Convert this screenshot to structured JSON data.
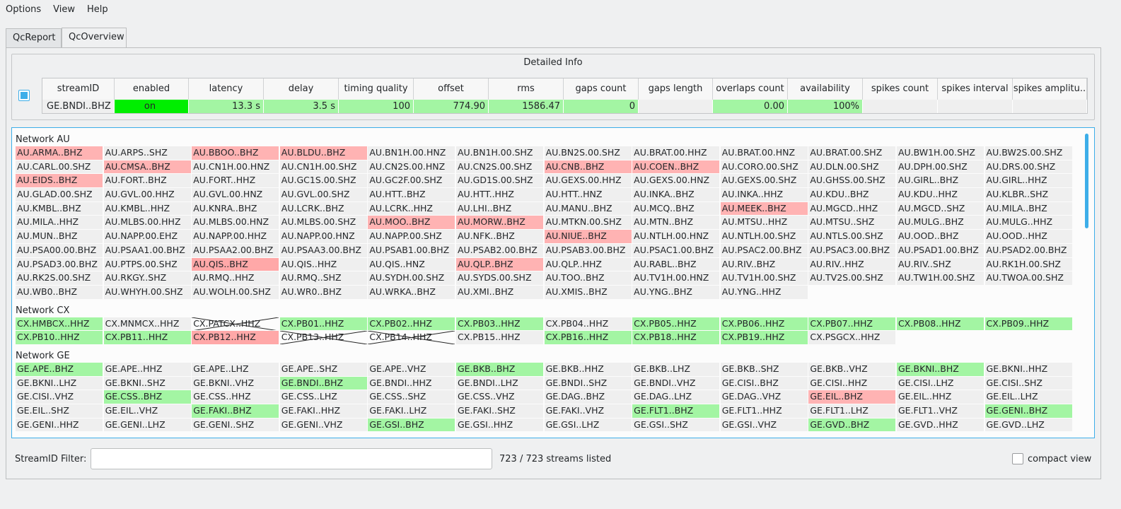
{
  "menu": [
    "Options",
    "View",
    "Help"
  ],
  "tabs": [
    "QcReport",
    "QcOverview"
  ],
  "detail": {
    "title": "Detailed Info",
    "columns": [
      "streamID",
      "enabled",
      "latency",
      "delay",
      "timing quality",
      "offset",
      "rms",
      "gaps count",
      "gaps length",
      "overlaps count",
      "availability",
      "spikes count",
      "spikes interval",
      "spikes amplitu.."
    ],
    "row": [
      {
        "text": "GE.BNDI..BHZ",
        "color": "#efefef"
      },
      {
        "text": "on",
        "color": "#00ee00"
      },
      {
        "text": "13.3 s",
        "color": "#a3f5a3"
      },
      {
        "text": "3.5 s",
        "color": "#a3f5a3"
      },
      {
        "text": "100",
        "color": "#a3f5a3"
      },
      {
        "text": "774.90",
        "color": "#a3f5a3"
      },
      {
        "text": "1586.47",
        "color": "#a3f5a3"
      },
      {
        "text": "0",
        "color": "#a3f5a3"
      },
      {
        "color": "#efefef"
      },
      {
        "text": "0.00",
        "color": "#a3f5a3"
      },
      {
        "text": "100%",
        "color": "#a3f5a3"
      },
      {
        "color": "#efefef"
      },
      {
        "color": "#efefef"
      },
      {
        "color": "#efefef"
      }
    ]
  },
  "networks": [
    {
      "label": "Network AU",
      "streams": [
        {
          "id": "AU.ARMA..BHZ",
          "color": "#ffb3b3"
        },
        {
          "id": "AU.ARPS..SHZ"
        },
        {
          "id": "AU.BBOO..BHZ",
          "color": "#ffb3b3"
        },
        {
          "id": "AU.BLDU..BHZ",
          "color": "#ffb3b3"
        },
        {
          "id": "AU.BN1H.00.HNZ"
        },
        {
          "id": "AU.BN1H.00.SHZ"
        },
        {
          "id": "AU.BN2S.00.SHZ"
        },
        {
          "id": "AU.BRAT.00.HHZ"
        },
        {
          "id": "AU.BRAT.00.HNZ"
        },
        {
          "id": "AU.BRAT.00.SHZ"
        },
        {
          "id": "AU.BW1H.00.SHZ"
        },
        {
          "id": "AU.BW2S.00.SHZ"
        },
        {
          "id": "AU.CARL.00.SHZ"
        },
        {
          "id": "AU.CMSA..BHZ",
          "color": "#ffb3b3"
        },
        {
          "id": "AU.CN1H.00.HNZ"
        },
        {
          "id": "AU.CN1H.00.SHZ"
        },
        {
          "id": "AU.CN2S.00.HNZ"
        },
        {
          "id": "AU.CN2S.00.SHZ"
        },
        {
          "id": "AU.CNB..BHZ",
          "color": "#ffb3b3"
        },
        {
          "id": "AU.COEN..BHZ",
          "color": "#ffb3b3"
        },
        {
          "id": "AU.CORO.00.SHZ"
        },
        {
          "id": "AU.DLN.00.SHZ"
        },
        {
          "id": "AU.DPH.00.SHZ"
        },
        {
          "id": "AU.DRS.00.SHZ"
        },
        {
          "id": "AU.EIDS..BHZ",
          "color": "#ffb3b3"
        },
        {
          "id": "AU.FORT..BHZ"
        },
        {
          "id": "AU.FORT..HHZ"
        },
        {
          "id": "AU.GC1S.00.SHZ"
        },
        {
          "id": "AU.GC2F.00.SHZ"
        },
        {
          "id": "AU.GD1S.00.SHZ"
        },
        {
          "id": "AU.GEXS.00.HHZ"
        },
        {
          "id": "AU.GEXS.00.HNZ"
        },
        {
          "id": "AU.GEXS.00.SHZ"
        },
        {
          "id": "AU.GHSS.00.SHZ"
        },
        {
          "id": "AU.GIRL..BHZ"
        },
        {
          "id": "AU.GIRL..HHZ"
        },
        {
          "id": "AU.GLAD.00.SHZ"
        },
        {
          "id": "AU.GVL.00.HHZ"
        },
        {
          "id": "AU.GVL.00.HNZ"
        },
        {
          "id": "AU.GVL.00.SHZ"
        },
        {
          "id": "AU.HTT..BHZ"
        },
        {
          "id": "AU.HTT..HHZ"
        },
        {
          "id": "AU.HTT..HNZ"
        },
        {
          "id": "AU.INKA..BHZ"
        },
        {
          "id": "AU.INKA..HHZ"
        },
        {
          "id": "AU.KDU..BHZ"
        },
        {
          "id": "AU.KDU..HHZ"
        },
        {
          "id": "AU.KLBR..SHZ"
        },
        {
          "id": "AU.KMBL..BHZ"
        },
        {
          "id": "AU.KMBL..HHZ"
        },
        {
          "id": "AU.KNRA..BHZ"
        },
        {
          "id": "AU.LCRK..BHZ"
        },
        {
          "id": "AU.LCRK..HHZ"
        },
        {
          "id": "AU.LHI..BHZ"
        },
        {
          "id": "AU.MANU..BHZ"
        },
        {
          "id": "AU.MCQ..BHZ"
        },
        {
          "id": "AU.MEEK..BHZ",
          "color": "#ffb3b3"
        },
        {
          "id": "AU.MGCD..HHZ"
        },
        {
          "id": "AU.MGCD..SHZ"
        },
        {
          "id": "AU.MILA..BHZ"
        },
        {
          "id": "AU.MILA..HHZ"
        },
        {
          "id": "AU.MLBS.00.HHZ"
        },
        {
          "id": "AU.MLBS.00.HNZ"
        },
        {
          "id": "AU.MLBS.00.SHZ"
        },
        {
          "id": "AU.MOO..BHZ",
          "color": "#ffb3b3"
        },
        {
          "id": "AU.MORW..BHZ",
          "color": "#ffb3b3"
        },
        {
          "id": "AU.MTKN.00.SHZ"
        },
        {
          "id": "AU.MTN..BHZ"
        },
        {
          "id": "AU.MTSU..HHZ"
        },
        {
          "id": "AU.MTSU..SHZ"
        },
        {
          "id": "AU.MULG..BHZ"
        },
        {
          "id": "AU.MULG..HHZ"
        },
        {
          "id": "AU.MUN..BHZ"
        },
        {
          "id": "AU.NAPP.00.EHZ"
        },
        {
          "id": "AU.NAPP.00.HHZ"
        },
        {
          "id": "AU.NAPP.00.HNZ"
        },
        {
          "id": "AU.NAPP.00.SHZ"
        },
        {
          "id": "AU.NFK..BHZ"
        },
        {
          "id": "AU.NIUE..BHZ",
          "color": "#ffb3b3"
        },
        {
          "id": "AU.NTLH.00.HNZ"
        },
        {
          "id": "AU.NTLH.00.SHZ"
        },
        {
          "id": "AU.NTLS.00.SHZ"
        },
        {
          "id": "AU.OOD..BHZ"
        },
        {
          "id": "AU.OOD..HHZ"
        },
        {
          "id": "AU.PSA00.00.BHZ"
        },
        {
          "id": "AU.PSAA1.00.BHZ"
        },
        {
          "id": "AU.PSAA2.00.BHZ"
        },
        {
          "id": "AU.PSAA3.00.BHZ"
        },
        {
          "id": "AU.PSAB1.00.BHZ"
        },
        {
          "id": "AU.PSAB2.00.BHZ"
        },
        {
          "id": "AU.PSAB3.00.BHZ"
        },
        {
          "id": "AU.PSAC1.00.BHZ"
        },
        {
          "id": "AU.PSAC2.00.BHZ"
        },
        {
          "id": "AU.PSAC3.00.BHZ"
        },
        {
          "id": "AU.PSAD1.00.BHZ"
        },
        {
          "id": "AU.PSAD2.00.BHZ"
        },
        {
          "id": "AU.PSAD3.00.BHZ"
        },
        {
          "id": "AU.PTPS.00.SHZ"
        },
        {
          "id": "AU.QIS..BHZ",
          "color": "#ffa8a8"
        },
        {
          "id": "AU.QIS..HHZ"
        },
        {
          "id": "AU.QIS..HNZ"
        },
        {
          "id": "AU.QLP..BHZ",
          "color": "#ffb3b3"
        },
        {
          "id": "AU.QLP..HHZ"
        },
        {
          "id": "AU.RABL..BHZ"
        },
        {
          "id": "AU.RIV..BHZ"
        },
        {
          "id": "AU.RIV..HHZ"
        },
        {
          "id": "AU.RIV..SHZ"
        },
        {
          "id": "AU.RK1H.00.SHZ"
        },
        {
          "id": "AU.RK2S.00.SHZ"
        },
        {
          "id": "AU.RKGY..SHZ"
        },
        {
          "id": "AU.RMQ..HHZ"
        },
        {
          "id": "AU.RMQ..SHZ"
        },
        {
          "id": "AU.SYDH.00.SHZ"
        },
        {
          "id": "AU.SYDS.00.SHZ"
        },
        {
          "id": "AU.TOO..BHZ"
        },
        {
          "id": "AU.TV1H.00.HNZ"
        },
        {
          "id": "AU.TV1H.00.SHZ"
        },
        {
          "id": "AU.TV2S.00.SHZ"
        },
        {
          "id": "AU.TW1H.00.SHZ"
        },
        {
          "id": "AU.TWOA.00.SHZ"
        },
        {
          "id": "AU.WB0..BHZ"
        },
        {
          "id": "AU.WHYH.00.SHZ"
        },
        {
          "id": "AU.WOLH.00.SHZ"
        },
        {
          "id": "AU.WR0..BHZ"
        },
        {
          "id": "AU.WRKA..BHZ"
        },
        {
          "id": "AU.XMI..BHZ"
        },
        {
          "id": "AU.XMIS..BHZ"
        },
        {
          "id": "AU.YNG..BHZ"
        },
        {
          "id": "AU.YNG..HHZ"
        }
      ]
    },
    {
      "label": "Network CX",
      "streams": [
        {
          "id": "CX.HMBCX..HHZ",
          "color": "#a3f5a3"
        },
        {
          "id": "CX.MNMCX..HHZ"
        },
        {
          "id": "CX.PATCX..HHZ",
          "crossed": true
        },
        {
          "id": "CX.PB01..HHZ",
          "color": "#a3f5a3"
        },
        {
          "id": "CX.PB02..HHZ",
          "color": "#a3f5a3"
        },
        {
          "id": "CX.PB03..HHZ",
          "color": "#a3f5a3"
        },
        {
          "id": "CX.PB04..HHZ"
        },
        {
          "id": "CX.PB05..HHZ",
          "color": "#a3f5a3"
        },
        {
          "id": "CX.PB06..HHZ",
          "color": "#a3f5a3"
        },
        {
          "id": "CX.PB07..HHZ",
          "color": "#a3f5a3"
        },
        {
          "id": "CX.PB08..HHZ",
          "color": "#a3f5a3"
        },
        {
          "id": "CX.PB09..HHZ",
          "color": "#a3f5a3"
        },
        {
          "id": "CX.PB10..HHZ",
          "color": "#a3f5a3"
        },
        {
          "id": "CX.PB11..HHZ",
          "color": "#a3f5a3"
        },
        {
          "id": "CX.PB12..HHZ",
          "color": "#ffa8a8"
        },
        {
          "id": "CX.PB13..HHZ",
          "crossed": true
        },
        {
          "id": "CX.PB14..HHZ",
          "crossed": true
        },
        {
          "id": "CX.PB15..HHZ"
        },
        {
          "id": "CX.PB16..HHZ",
          "color": "#a3f5a3"
        },
        {
          "id": "CX.PB18..HHZ",
          "color": "#a3f5a3"
        },
        {
          "id": "CX.PB19..HHZ",
          "color": "#a3f5a3"
        },
        {
          "id": "CX.PSGCX..HHZ"
        }
      ]
    },
    {
      "label": "Network GE",
      "streams": [
        {
          "id": "GE.APE..BHZ",
          "color": "#a3f5a3"
        },
        {
          "id": "GE.APE..HHZ"
        },
        {
          "id": "GE.APE..LHZ"
        },
        {
          "id": "GE.APE..SHZ"
        },
        {
          "id": "GE.APE..VHZ"
        },
        {
          "id": "GE.BKB..BHZ",
          "color": "#a3f5a3"
        },
        {
          "id": "GE.BKB..HHZ"
        },
        {
          "id": "GE.BKB..LHZ"
        },
        {
          "id": "GE.BKB..SHZ"
        },
        {
          "id": "GE.BKB..VHZ"
        },
        {
          "id": "GE.BKNI..BHZ",
          "color": "#a3f5a3"
        },
        {
          "id": "GE.BKNI..HHZ"
        },
        {
          "id": "GE.BKNI..LHZ"
        },
        {
          "id": "GE.BKNI..SHZ"
        },
        {
          "id": "GE.BKNI..VHZ"
        },
        {
          "id": "GE.BNDI..BHZ",
          "color": "#a3f5a3"
        },
        {
          "id": "GE.BNDI..HHZ"
        },
        {
          "id": "GE.BNDI..LHZ"
        },
        {
          "id": "GE.BNDI..SHZ"
        },
        {
          "id": "GE.BNDI..VHZ"
        },
        {
          "id": "GE.CISI..BHZ"
        },
        {
          "id": "GE.CISI..HHZ"
        },
        {
          "id": "GE.CISI..LHZ"
        },
        {
          "id": "GE.CISI..SHZ"
        },
        {
          "id": "GE.CISI..VHZ"
        },
        {
          "id": "GE.CSS..BHZ",
          "color": "#a3f5a3"
        },
        {
          "id": "GE.CSS..HHZ"
        },
        {
          "id": "GE.CSS..LHZ"
        },
        {
          "id": "GE.CSS..SHZ"
        },
        {
          "id": "GE.CSS..VHZ"
        },
        {
          "id": "GE.DAG..BHZ"
        },
        {
          "id": "GE.DAG..LHZ"
        },
        {
          "id": "GE.DAG..VHZ"
        },
        {
          "id": "GE.EIL..BHZ",
          "color": "#ffb3b3"
        },
        {
          "id": "GE.EIL..HHZ"
        },
        {
          "id": "GE.EIL..LHZ"
        },
        {
          "id": "GE.EIL..SHZ"
        },
        {
          "id": "GE.EIL..VHZ"
        },
        {
          "id": "GE.FAKI..BHZ",
          "color": "#a3f5a3"
        },
        {
          "id": "GE.FAKI..HHZ"
        },
        {
          "id": "GE.FAKI..LHZ"
        },
        {
          "id": "GE.FAKI..SHZ"
        },
        {
          "id": "GE.FAKI..VHZ"
        },
        {
          "id": "GE.FLT1..BHZ",
          "color": "#a3f5a3"
        },
        {
          "id": "GE.FLT1..HHZ"
        },
        {
          "id": "GE.FLT1..LHZ"
        },
        {
          "id": "GE.FLT1..VHZ"
        },
        {
          "id": "GE.GENI..BHZ",
          "color": "#a3f5a3"
        },
        {
          "id": "GE.GENI..HHZ"
        },
        {
          "id": "GE.GENI..LHZ"
        },
        {
          "id": "GE.GENI..SHZ"
        },
        {
          "id": "GE.GENI..VHZ"
        },
        {
          "id": "GE.GSI..BHZ",
          "color": "#a3f5a3"
        },
        {
          "id": "GE.GSI..HHZ"
        },
        {
          "id": "GE.GSI..LHZ"
        },
        {
          "id": "GE.GSI..SHZ"
        },
        {
          "id": "GE.GSI..VHZ"
        },
        {
          "id": "GE.GVD..BHZ",
          "color": "#a3f5a3"
        },
        {
          "id": "GE.GVD..HHZ"
        },
        {
          "id": "GE.GVD..LHZ"
        }
      ]
    }
  ],
  "filter": {
    "label": "StreamID Filter:",
    "status": "723 / 723 streams listed",
    "compact": "compact view"
  }
}
